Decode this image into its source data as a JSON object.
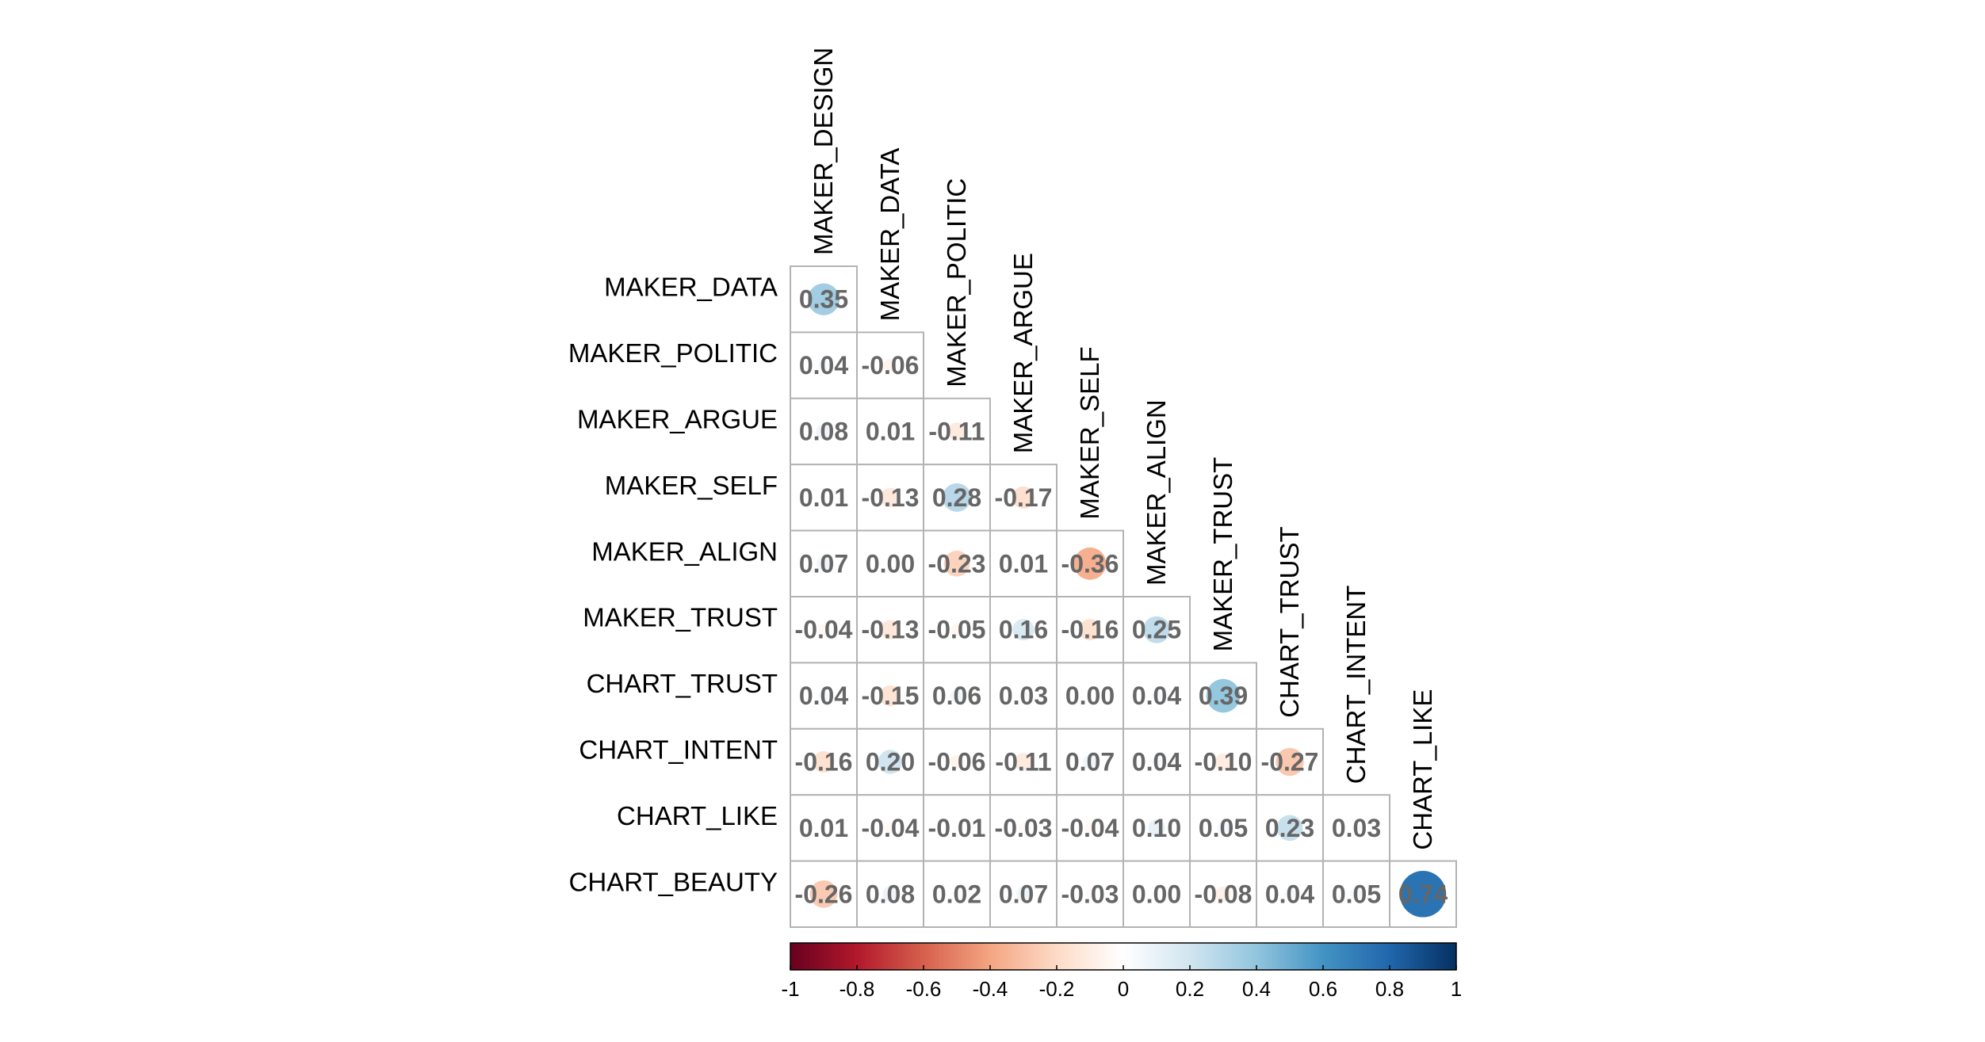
{
  "colors": {
    "grid": "#b3b3b3",
    "value_text": "#666666",
    "scale": [
      "#67001f",
      "#b2182b",
      "#d6604d",
      "#f4a582",
      "#fddbc7",
      "#ffffff",
      "#d1e5f0",
      "#92c5de",
      "#4393c3",
      "#2166ac",
      "#053061"
    ]
  },
  "chart_data": {
    "type": "heatmap",
    "style": "correlation-circles-lower-triangle",
    "columns": [
      "MAKER_DESIGN",
      "MAKER_DATA",
      "MAKER_POLITIC",
      "MAKER_ARGUE",
      "MAKER_SELF",
      "MAKER_ALIGN",
      "MAKER_TRUST",
      "CHART_TRUST",
      "CHART_INTENT",
      "CHART_LIKE"
    ],
    "rows": [
      {
        "label": "MAKER_DATA",
        "values": [
          "0.35"
        ]
      },
      {
        "label": "MAKER_POLITIC",
        "values": [
          "0.04",
          "-0.06"
        ]
      },
      {
        "label": "MAKER_ARGUE",
        "values": [
          "0.08",
          "0.01",
          "-0.11"
        ]
      },
      {
        "label": "MAKER_SELF",
        "values": [
          "0.01",
          "-0.13",
          "0.28",
          "-0.17"
        ]
      },
      {
        "label": "MAKER_ALIGN",
        "values": [
          "0.07",
          "0.00",
          "-0.23",
          "0.01",
          "-0.36"
        ]
      },
      {
        "label": "MAKER_TRUST",
        "values": [
          "-0.04",
          "-0.13",
          "-0.05",
          "0.16",
          "-0.16",
          "0.25"
        ]
      },
      {
        "label": "CHART_TRUST",
        "values": [
          "0.04",
          "-0.15",
          "0.06",
          "0.03",
          "0.00",
          "0.04",
          "0.39"
        ]
      },
      {
        "label": "CHART_INTENT",
        "values": [
          "-0.16",
          "0.20",
          "-0.06",
          "-0.11",
          "0.07",
          "0.04",
          "-0.10",
          "-0.27"
        ]
      },
      {
        "label": "CHART_LIKE",
        "values": [
          "0.01",
          "-0.04",
          "-0.01",
          "-0.03",
          "-0.04",
          "0.10",
          "0.05",
          "0.23",
          "0.03"
        ]
      },
      {
        "label": "CHART_BEAUTY",
        "values": [
          "-0.26",
          "0.08",
          "0.02",
          "0.07",
          "-0.03",
          "0.00",
          "-0.08",
          "0.04",
          "0.05",
          "0.74"
        ]
      }
    ],
    "colorbar": {
      "range": [
        -1,
        1
      ],
      "ticks": [
        "-1",
        "-0.8",
        "-0.6",
        "-0.4",
        "-0.2",
        "0",
        "0.2",
        "0.4",
        "0.6",
        "0.8",
        "1"
      ]
    }
  }
}
